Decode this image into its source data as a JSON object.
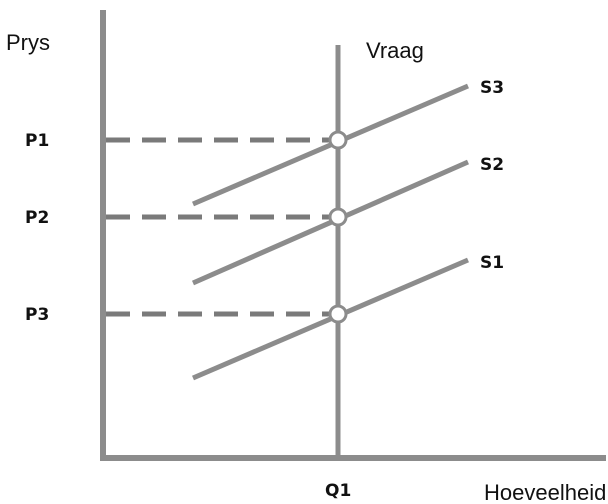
{
  "axes": {
    "y_label": "Prys",
    "x_label": "Hoeveelheid",
    "color": "#8c8c8c"
  },
  "demand": {
    "label": "Vraag",
    "quantity_label": "Q1"
  },
  "supply_curves": [
    {
      "label": "S3",
      "price_label": "P1"
    },
    {
      "label": "S2",
      "price_label": "P2"
    },
    {
      "label": "S1",
      "price_label": "P3"
    }
  ],
  "style": {
    "line_color": "#8c8c8c",
    "dash_color": "#7a7a7a",
    "point_fill": "#ffffff"
  }
}
